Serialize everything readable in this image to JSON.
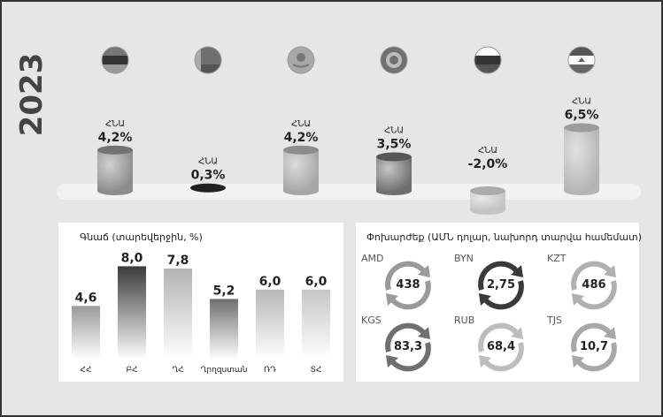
{
  "year": "2023",
  "gdp": {
    "label": "ՀՆԱ",
    "countries": [
      {
        "value_text": "4,2%",
        "value": 4.2,
        "flag": "armenia-flag",
        "bar_color": "#8c8c8c"
      },
      {
        "value_text": "0,3%",
        "value": 0.3,
        "flag": "belarus-flag",
        "bar_color": "#3a3a3a"
      },
      {
        "value_text": "4,2%",
        "value": 4.2,
        "flag": "kazakhstan-flag",
        "bar_color": "#a6a6a6"
      },
      {
        "value_text": "3,5%",
        "value": 3.5,
        "flag": "kyrgyzstan-flag",
        "bar_color": "#6f6f6f"
      },
      {
        "value_text": "-2,0%",
        "value": -2.0,
        "flag": "russia-flag",
        "bar_color": "#c4c4c4"
      },
      {
        "value_text": "6,5%",
        "value": 6.5,
        "flag": "tajikistan-flag",
        "bar_color": "#b5b5b5"
      }
    ]
  },
  "inflation": {
    "title": "Գնաճ (տարեվերջին, %)",
    "colors": [
      "#9a9a9a",
      "#3a3a3a",
      "#b3b3b3",
      "#6f6f6f",
      "#b8b8b8",
      "#c6c6c6"
    ]
  },
  "exchange": {
    "title": "Փոխարժեք (ԱՄՆ դոլար, նախորդ տարվա համեմատ)",
    "items": [
      {
        "code": "AMD",
        "value": "438",
        "ring_color": "#9a9a9a"
      },
      {
        "code": "BYN",
        "value": "2,75",
        "ring_color": "#3a3a3a"
      },
      {
        "code": "KZT",
        "value": "486",
        "ring_color": "#b0b0b0"
      },
      {
        "code": "KGS",
        "value": "83,3",
        "ring_color": "#6f6f6f"
      },
      {
        "code": "RUB",
        "value": "68,4",
        "ring_color": "#bdbdbd"
      },
      {
        "code": "TJS",
        "value": "10,7",
        "ring_color": "#a8a8a8"
      }
    ]
  },
  "chart_data": [
    {
      "type": "bar",
      "categories": [
        "Armenia",
        "Belarus",
        "Kazakhstan",
        "Kyrgyzstan",
        "Russia",
        "Tajikistan"
      ],
      "series": [
        {
          "name": "ՀՆԱ",
          "values": [
            4.2,
            0.3,
            4.2,
            3.5,
            -2.0,
            6.5
          ]
        }
      ],
      "title": "2023",
      "ylim": [
        -2.5,
        7
      ]
    },
    {
      "type": "bar",
      "categories": [
        "ՀՀ",
        "ԲՀ",
        "ՂՀ",
        "Ղրղզստան",
        "ՌԴ",
        "ՏՀ"
      ],
      "values": [
        4.6,
        8.0,
        7.8,
        5.2,
        6.0,
        6.0
      ],
      "value_labels": [
        "4,6",
        "8,0",
        "7,8",
        "5,2",
        "6,0",
        "6,0"
      ],
      "title": "Գնաճ (տարեվերջին, %)",
      "ylim": [
        0,
        9
      ]
    }
  ]
}
